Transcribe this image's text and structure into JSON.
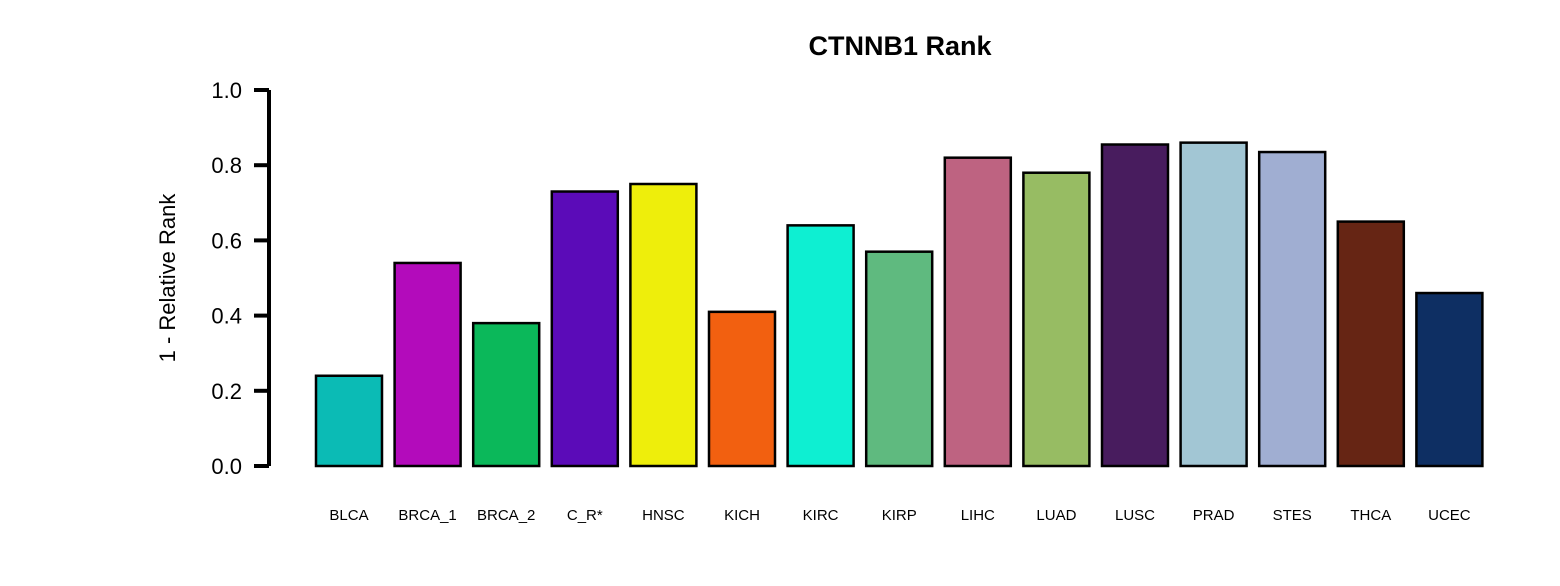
{
  "chart_data": {
    "type": "bar",
    "title": "CTNNB1 Rank",
    "xlabel": "",
    "ylabel": "1 - Relative Rank",
    "ylim": [
      0,
      1
    ],
    "yticks": [
      "0.0",
      "0.2",
      "0.4",
      "0.6",
      "0.8",
      "1.0"
    ],
    "grid": false,
    "categories": [
      "BLCA",
      "BRCA_1",
      "BRCA_2",
      "C_R*",
      "HNSC",
      "KICH",
      "KIRC",
      "KIRP",
      "LIHC",
      "LUAD",
      "LUSC",
      "PRAD",
      "STES",
      "THCA",
      "UCEC"
    ],
    "values": [
      0.24,
      0.54,
      0.38,
      0.73,
      0.75,
      0.41,
      0.64,
      0.57,
      0.82,
      0.78,
      0.855,
      0.86,
      0.835,
      0.65,
      0.46
    ],
    "colors": [
      "#0BBBB5",
      "#B30BBB",
      "#0BB85A",
      "#5B0BB8",
      "#EEEE0B",
      "#F26010",
      "#0EEFD2",
      "#5FBA7F",
      "#BE6381",
      "#97BC63",
      "#481C5E",
      "#A2C6D4",
      "#A0AED2",
      "#662514",
      "#0E2F63"
    ]
  }
}
